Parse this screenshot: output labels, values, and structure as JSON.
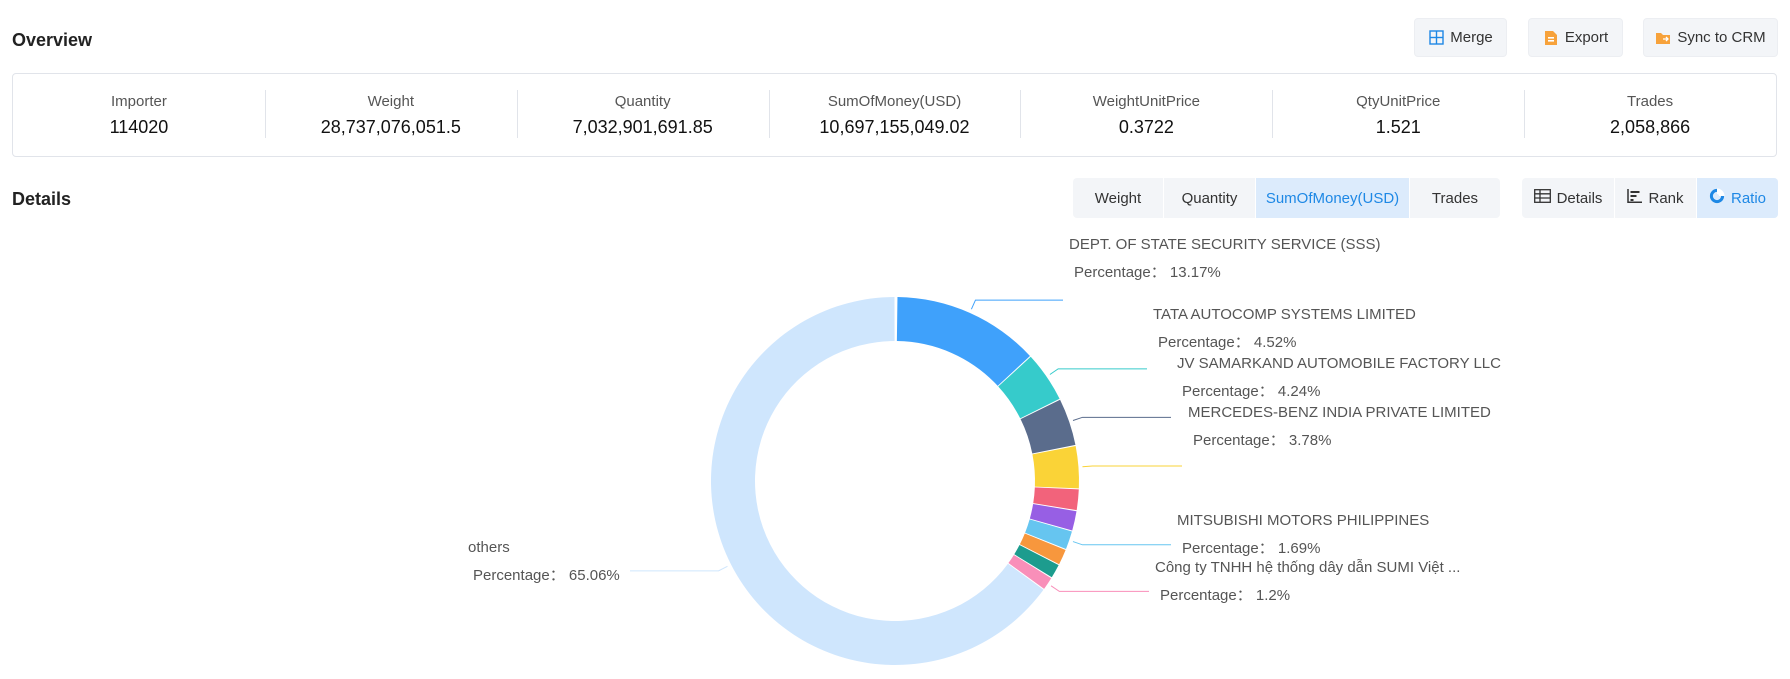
{
  "overview": {
    "title": "Overview",
    "buttons": {
      "merge": "Merge",
      "export": "Export",
      "sync": "Sync to CRM"
    },
    "stats": [
      {
        "label": "Importer",
        "value": "114020"
      },
      {
        "label": "Weight",
        "value": "28,737,076,051.5"
      },
      {
        "label": "Quantity",
        "value": "7,032,901,691.85"
      },
      {
        "label": "SumOfMoney(USD)",
        "value": "10,697,155,049.02"
      },
      {
        "label": "WeightUnitPrice",
        "value": "0.3722"
      },
      {
        "label": "QtyUnitPrice",
        "value": "1.521"
      },
      {
        "label": "Trades",
        "value": "2,058,866"
      }
    ]
  },
  "details": {
    "title": "Details",
    "metric_tabs": [
      "Weight",
      "Quantity",
      "SumOfMoney(USD)",
      "Trades"
    ],
    "active_metric": "SumOfMoney(USD)",
    "view_tabs": [
      "Details",
      "Rank",
      "Ratio"
    ],
    "active_view": "Ratio",
    "percent_prefix": "Percentage："
  },
  "chart_data": {
    "type": "pie",
    "style": "donut",
    "slices": [
      {
        "name": "DEPT. OF STATE SECURITY SERVICE (SSS)",
        "value": 13.17,
        "color": "#3fa1fb",
        "labeled": true
      },
      {
        "name": "TATA AUTOCOMP SYSTEMS LIMITED",
        "value": 4.52,
        "color": "#36cbcb",
        "labeled": true
      },
      {
        "name": "JV SAMARKAND AUTOMOBILE FACTORY LLC",
        "value": 4.24,
        "color": "#5a6c8c",
        "labeled": true
      },
      {
        "name": "MERCEDES-BENZ INDIA PRIVATE LIMITED",
        "value": 3.78,
        "color": "#fad337",
        "labeled": true
      },
      {
        "name": "",
        "value": 1.9,
        "color": "#f2637b",
        "labeled": false
      },
      {
        "name": "",
        "value": 1.8,
        "color": "#975fe4",
        "labeled": false
      },
      {
        "name": "MITSUBISHI MOTORS PHILIPPINES",
        "value": 1.69,
        "color": "#66c5f0",
        "labeled": true
      },
      {
        "name": "",
        "value": 1.45,
        "color": "#f7973d",
        "labeled": false
      },
      {
        "name": "",
        "value": 1.3,
        "color": "#1d9c8e",
        "labeled": false
      },
      {
        "name": "Công ty TNHH hệ thống dây dẫn SUMI Việt ...",
        "value": 1.2,
        "color": "#f98fb9",
        "labeled": true
      },
      {
        "name": "others",
        "value": 65.06,
        "color": "#cfe6fd",
        "labeled": true
      }
    ],
    "value_labels": [
      "13.17%",
      "4.52%",
      "4.24%",
      "3.78%",
      "",
      "",
      "1.69%",
      "",
      "",
      "1.2%",
      "65.06%"
    ]
  }
}
